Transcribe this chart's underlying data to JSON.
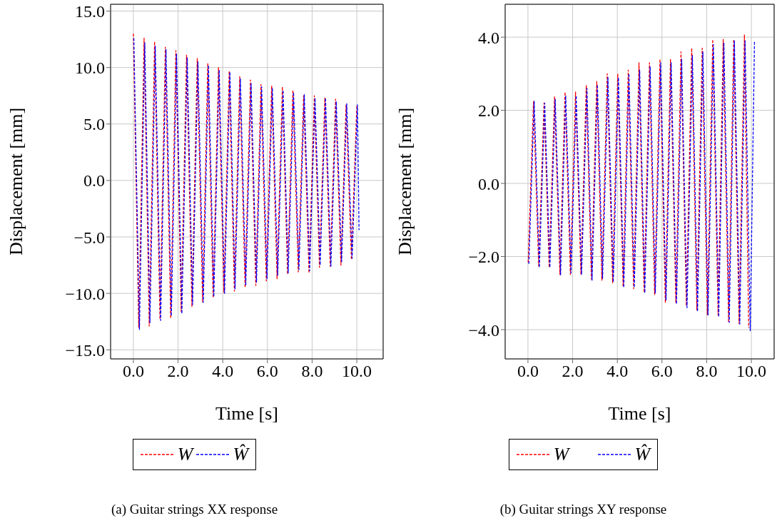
{
  "chart_data": [
    {
      "type": "line",
      "xlabel": "Time [s]",
      "ylabel": "Displacement [mm]",
      "xlim": [
        -1.02,
        11.18
      ],
      "ylim": [
        -15.8,
        15.6
      ],
      "xticks": [
        {
          "value": 0,
          "label": "0.0"
        },
        {
          "value": 2,
          "label": "2.0"
        },
        {
          "value": 4,
          "label": "4.0"
        },
        {
          "value": 6,
          "label": "6.0"
        },
        {
          "value": 8,
          "label": "8.0"
        },
        {
          "value": 10,
          "label": "10.0"
        }
      ],
      "yticks": [
        {
          "value": -15,
          "label": "−15.0"
        },
        {
          "value": -10,
          "label": "−10.0"
        },
        {
          "value": -5,
          "label": "−5.0"
        },
        {
          "value": 0,
          "label": "0.0"
        },
        {
          "value": 5,
          "label": "5.0"
        },
        {
          "value": 10,
          "label": "10.0"
        },
        {
          "value": 15,
          "label": "15.0"
        }
      ],
      "grid": true,
      "legend": "bottom",
      "line_style": "dashed",
      "annotations": [
        "(a) Guitar strings XX response"
      ],
      "series": [
        {
          "name": "W",
          "color": "#ff0000",
          "x": [
            0,
            0.24,
            0.48,
            0.71,
            0.95,
            1.19,
            1.43,
            1.67,
            1.9,
            2.14,
            2.38,
            2.62,
            2.86,
            3.1,
            3.33,
            3.57,
            3.81,
            4.05,
            4.29,
            4.52,
            4.76,
            5.0,
            5.24,
            5.48,
            5.71,
            5.95,
            6.19,
            6.43,
            6.67,
            6.9,
            7.14,
            7.38,
            7.62,
            7.86,
            8.1,
            8.33,
            8.57,
            8.81,
            9.05,
            9.29,
            9.52,
            9.76,
            10.0
          ],
          "values": [
            13.0,
            -13.0,
            12.6,
            -12.9,
            12.3,
            -12.3,
            11.8,
            -12.2,
            11.5,
            -11.6,
            11.1,
            -11.2,
            10.8,
            -10.8,
            10.4,
            -10.4,
            10.0,
            -9.9,
            9.7,
            -9.8,
            9.2,
            -9.5,
            8.9,
            -9.3,
            8.5,
            -8.9,
            8.4,
            -8.7,
            8.3,
            -8.3,
            8.0,
            -8.1,
            7.5,
            -8.2,
            7.5,
            -7.7,
            7.3,
            -7.6,
            7.2,
            -7.5,
            6.7,
            -7.0,
            6.6
          ]
        },
        {
          "name": "Ŵ",
          "color": "#0000ff",
          "x": [
            0.02,
            0.27,
            0.51,
            0.74,
            0.98,
            1.22,
            1.46,
            1.7,
            1.93,
            2.17,
            2.41,
            2.65,
            2.89,
            3.13,
            3.36,
            3.6,
            3.84,
            4.08,
            4.32,
            4.55,
            4.79,
            5.03,
            5.27,
            5.51,
            5.74,
            5.98,
            6.22,
            6.46,
            6.7,
            6.93,
            7.17,
            7.41,
            7.65,
            7.89,
            8.13,
            8.36,
            8.6,
            8.84,
            9.08,
            9.32,
            9.55,
            9.79,
            10.03,
            10.1
          ],
          "values": [
            12.6,
            -13.2,
            12.2,
            -12.6,
            11.9,
            -12.4,
            11.6,
            -12.0,
            11.2,
            -11.8,
            10.9,
            -11.0,
            10.5,
            -10.8,
            10.2,
            -10.3,
            9.8,
            -10.0,
            9.6,
            -9.6,
            9.0,
            -9.3,
            8.6,
            -9.0,
            8.3,
            -8.7,
            8.2,
            -8.4,
            8.0,
            -8.2,
            7.8,
            -7.9,
            7.6,
            -8.0,
            7.3,
            -7.5,
            7.3,
            -7.6,
            7.0,
            -7.2,
            6.8,
            -6.9,
            6.7,
            -4.4
          ]
        }
      ]
    },
    {
      "type": "line",
      "xlabel": "Time [s]",
      "ylabel": "Displacement [mm]",
      "xlim": [
        -1.02,
        11.02
      ],
      "ylim": [
        -4.8,
        4.9
      ],
      "xticks": [
        {
          "value": 0,
          "label": "0.0"
        },
        {
          "value": 2,
          "label": "2.0"
        },
        {
          "value": 4,
          "label": "4.0"
        },
        {
          "value": 6,
          "label": "6.0"
        },
        {
          "value": 8,
          "label": "8.0"
        },
        {
          "value": 10,
          "label": "10.0"
        }
      ],
      "yticks": [
        {
          "value": -4,
          "label": "−4.0"
        },
        {
          "value": -2,
          "label": "−2.0"
        },
        {
          "value": 0,
          "label": "0.0"
        },
        {
          "value": 2,
          "label": "2.0"
        },
        {
          "value": 4,
          "label": "4.0"
        }
      ],
      "grid": true,
      "legend": "bottom",
      "line_style": "dashed",
      "annotations": [
        "(b) Guitar strings XY response"
      ],
      "series": [
        {
          "name": "W",
          "color": "#ff0000",
          "x": [
            0.01,
            0.25,
            0.48,
            0.72,
            0.95,
            1.19,
            1.43,
            1.66,
            1.9,
            2.13,
            2.37,
            2.61,
            2.84,
            3.08,
            3.31,
            3.55,
            3.79,
            4.02,
            4.26,
            4.49,
            4.73,
            4.97,
            5.2,
            5.44,
            5.67,
            5.91,
            6.15,
            6.38,
            6.62,
            6.85,
            7.09,
            7.33,
            7.56,
            7.8,
            8.03,
            8.27,
            8.51,
            8.74,
            8.98,
            9.21,
            9.45,
            9.69,
            9.88
          ],
          "values": [
            -2.16,
            2.25,
            -2.26,
            2.2,
            -2.3,
            2.37,
            -2.49,
            2.5,
            -2.49,
            2.5,
            -2.49,
            2.69,
            -2.62,
            2.79,
            -2.65,
            3.0,
            -2.72,
            3.0,
            -2.82,
            3.1,
            -2.88,
            3.3,
            -2.98,
            3.3,
            -3.05,
            3.4,
            -3.27,
            3.4,
            -3.27,
            3.6,
            -3.35,
            3.7,
            -3.46,
            3.7,
            -3.59,
            3.94,
            -3.6,
            3.94,
            -3.8,
            3.94,
            -3.83,
            4.07,
            -3.95
          ]
        },
        {
          "name": "Ŵ",
          "color": "#0000ff",
          "x": [
            0.04,
            0.28,
            0.51,
            0.75,
            0.98,
            1.22,
            1.46,
            1.69,
            1.93,
            2.16,
            2.4,
            2.64,
            2.87,
            3.11,
            3.34,
            3.58,
            3.82,
            4.05,
            4.29,
            4.52,
            4.76,
            5.0,
            5.23,
            5.47,
            5.7,
            5.94,
            6.18,
            6.41,
            6.65,
            6.88,
            7.12,
            7.36,
            7.59,
            7.83,
            8.06,
            8.3,
            8.54,
            8.77,
            9.01,
            9.24,
            9.48,
            9.72,
            9.95,
            10.14
          ],
          "values": [
            -2.2,
            2.25,
            -2.3,
            2.2,
            -2.3,
            2.3,
            -2.5,
            2.4,
            -2.45,
            2.4,
            -2.5,
            2.6,
            -2.65,
            2.7,
            -2.6,
            2.9,
            -2.7,
            2.9,
            -2.85,
            3.0,
            -2.85,
            3.1,
            -3.0,
            3.2,
            -3.0,
            3.3,
            -3.2,
            3.3,
            -3.3,
            3.4,
            -3.4,
            3.5,
            -3.5,
            3.6,
            -3.6,
            3.8,
            -3.65,
            3.85,
            -3.8,
            3.9,
            -3.85,
            3.9,
            -4.03,
            3.9
          ]
        }
      ]
    }
  ]
}
